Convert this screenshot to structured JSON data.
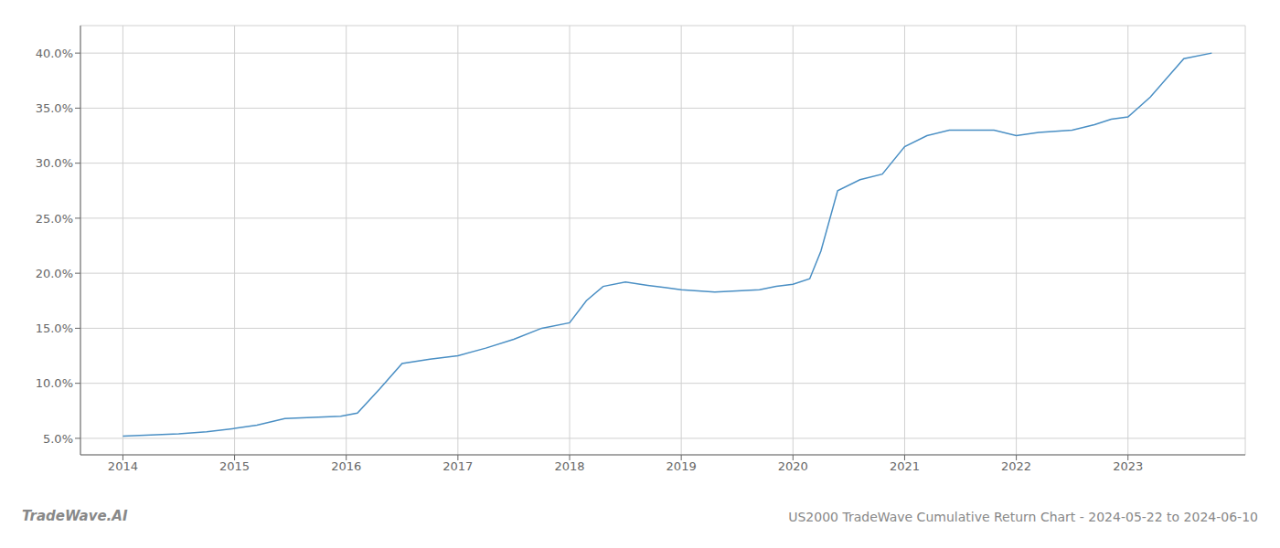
{
  "chart_data": {
    "type": "line",
    "title": "US2000 TradeWave Cumulative Return Chart - 2024-05-22 to 2024-06-10",
    "annotations": [
      "TradeWave.AI"
    ],
    "x": [
      2014.0,
      2014.25,
      2014.5,
      2014.75,
      2015.0,
      2015.2,
      2015.45,
      2015.7,
      2015.95,
      2016.1,
      2016.3,
      2016.5,
      2016.75,
      2017.0,
      2017.25,
      2017.5,
      2017.75,
      2018.0,
      2018.15,
      2018.3,
      2018.5,
      2018.7,
      2018.85,
      2019.0,
      2019.15,
      2019.3,
      2019.5,
      2019.7,
      2019.85,
      2020.0,
      2020.15,
      2020.25,
      2020.4,
      2020.6,
      2020.8,
      2021.0,
      2021.2,
      2021.4,
      2021.6,
      2021.8,
      2022.0,
      2022.2,
      2022.5,
      2022.7,
      2022.85,
      2023.0,
      2023.2,
      2023.5,
      2023.75
    ],
    "values": [
      5.2,
      5.3,
      5.4,
      5.6,
      5.9,
      6.2,
      6.8,
      6.9,
      7.0,
      7.3,
      9.5,
      11.8,
      12.2,
      12.5,
      13.2,
      14.0,
      15.0,
      15.5,
      17.5,
      18.8,
      19.2,
      18.9,
      18.7,
      18.5,
      18.4,
      18.3,
      18.4,
      18.5,
      18.8,
      19.0,
      19.5,
      22.0,
      27.5,
      28.5,
      29.0,
      31.5,
      32.5,
      33.0,
      33.0,
      33.0,
      32.5,
      32.8,
      33.0,
      33.5,
      34.0,
      34.2,
      36.0,
      39.5,
      40.0
    ],
    "color": "#4a8fc4",
    "xlim": [
      2013.62,
      2024.05
    ],
    "ylim": [
      3.5,
      42.5
    ],
    "xticks": [
      2014,
      2015,
      2016,
      2017,
      2018,
      2019,
      2020,
      2021,
      2022,
      2023
    ],
    "yticks": [
      {
        "value": 5.0,
        "label": "5.0%"
      },
      {
        "value": 10.0,
        "label": "10.0%"
      },
      {
        "value": 15.0,
        "label": "15.0%"
      },
      {
        "value": 20.0,
        "label": "20.0%"
      },
      {
        "value": 25.0,
        "label": "25.0%"
      },
      {
        "value": 30.0,
        "label": "30.0%"
      },
      {
        "value": 35.0,
        "label": "35.0%"
      },
      {
        "value": 40.0,
        "label": "40.0%"
      }
    ],
    "grid": true
  }
}
